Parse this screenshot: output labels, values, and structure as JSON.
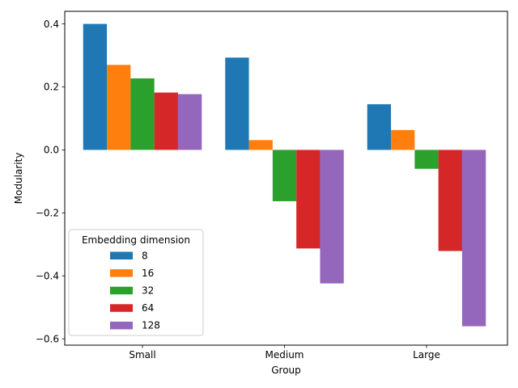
{
  "chart_data": {
    "type": "bar",
    "title": "",
    "xlabel": "Group",
    "ylabel": "Modularity",
    "categories": [
      "Small",
      "Medium",
      "Large"
    ],
    "ylim": [
      -0.62,
      0.44
    ],
    "yticks": [
      -0.6,
      -0.4,
      -0.2,
      0.0,
      0.2,
      0.4
    ],
    "ytick_labels": [
      "−0.6",
      "−0.4",
      "−0.2",
      "0.0",
      "0.2",
      "0.4"
    ],
    "grid": false,
    "legend": {
      "title": "Embedding dimension",
      "placement": "lower-left"
    },
    "series": [
      {
        "name": "8",
        "color": "#1f77b4",
        "values": [
          0.4,
          0.293,
          0.145
        ]
      },
      {
        "name": "16",
        "color": "#ff7f0e",
        "values": [
          0.27,
          0.031,
          0.063
        ]
      },
      {
        "name": "32",
        "color": "#2ca02c",
        "values": [
          0.227,
          -0.163,
          -0.06
        ]
      },
      {
        "name": "64",
        "color": "#d62728",
        "values": [
          0.182,
          -0.313,
          -0.321
        ]
      },
      {
        "name": "128",
        "color": "#9467bd",
        "values": [
          0.177,
          -0.424,
          -0.56
        ]
      }
    ]
  }
}
